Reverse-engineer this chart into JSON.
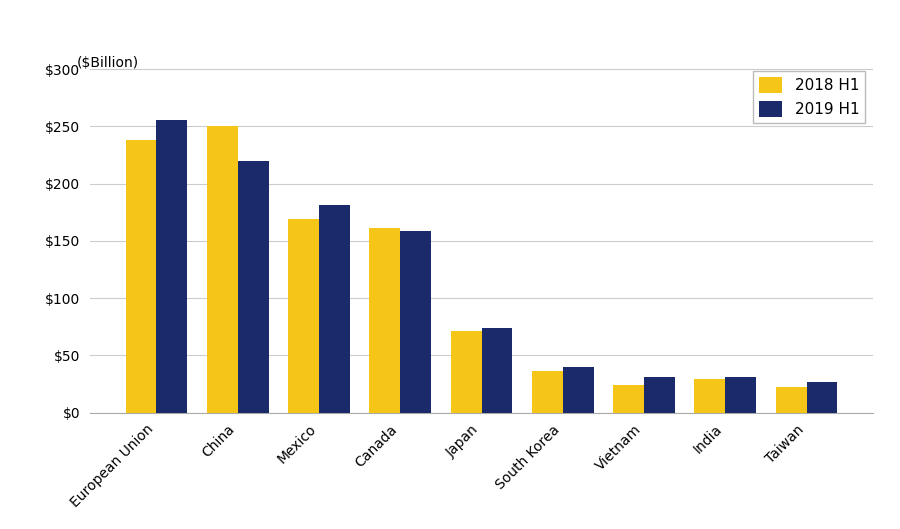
{
  "categories": [
    "European Union",
    "China",
    "Mexico",
    "Canada",
    "Japan",
    "South Korea",
    "Vietnam",
    "India",
    "Taiwan"
  ],
  "values_2018": [
    238,
    250,
    169,
    161,
    71,
    36,
    24,
    29,
    22
  ],
  "values_2019": [
    256,
    220,
    181,
    159,
    74,
    40,
    31,
    31,
    27
  ],
  "color_2018": "#F5C518",
  "color_2019": "#1B2A6B",
  "ytick_labels": [
    "$0",
    "$50",
    "$100",
    "$150",
    "$200",
    "$250",
    "$300"
  ],
  "ytick_values": [
    0,
    50,
    100,
    150,
    200,
    250,
    300
  ],
  "ylim": [
    0,
    305
  ],
  "legend_labels": [
    "2018 H1",
    "2019 H1"
  ],
  "background_color": "#ffffff",
  "bar_width": 0.38,
  "grid_color": "#cccccc"
}
